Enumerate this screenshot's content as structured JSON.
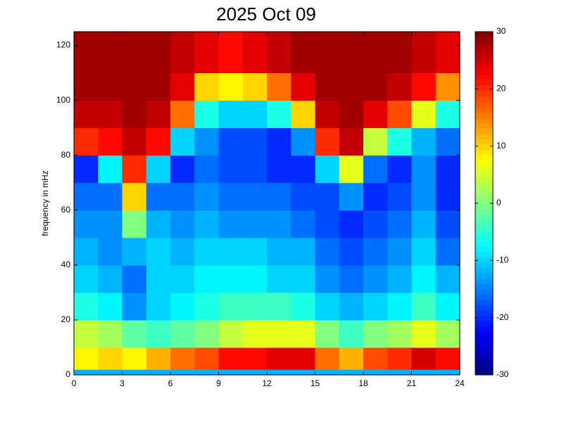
{
  "chart_data": {
    "type": "heatmap",
    "title": "2025 Oct 09",
    "y_label": "frequency in mHz",
    "x_edges": [
      0,
      1.5,
      3,
      4.5,
      6,
      7.5,
      9,
      10.5,
      12,
      13.5,
      15,
      16.5,
      18,
      19.5,
      21,
      22.5,
      24
    ],
    "y_edges": [
      0,
      2,
      10,
      20,
      30,
      40,
      50,
      60,
      70,
      80,
      90,
      100,
      110,
      125
    ],
    "values": [
      [
        -12,
        -12,
        -12,
        -12,
        -12,
        -12,
        -12,
        -12,
        -12,
        -12,
        -12,
        -12,
        -12,
        -12,
        -12,
        -12
      ],
      [
        8,
        10,
        8,
        12,
        16,
        18,
        22,
        22,
        24,
        24,
        16,
        12,
        18,
        20,
        25,
        22
      ],
      [
        4,
        2,
        -2,
        -4,
        -2,
        0,
        4,
        6,
        6,
        6,
        0,
        -4,
        0,
        2,
        6,
        2
      ],
      [
        -6,
        -8,
        -14,
        -10,
        -8,
        -6,
        -4,
        -4,
        -4,
        -6,
        -10,
        -12,
        -10,
        -8,
        -4,
        -8
      ],
      [
        -10,
        -12,
        -16,
        -10,
        -10,
        -8,
        -8,
        -8,
        -10,
        -10,
        -14,
        -16,
        -14,
        -12,
        -8,
        -12
      ],
      [
        -12,
        -14,
        -12,
        -10,
        -12,
        -10,
        -10,
        -10,
        -12,
        -12,
        -16,
        -18,
        -16,
        -14,
        -10,
        -16
      ],
      [
        -14,
        -14,
        0,
        -12,
        -14,
        -12,
        -14,
        -14,
        -14,
        -16,
        -18,
        -20,
        -18,
        -16,
        -12,
        -18
      ],
      [
        -16,
        -16,
        10,
        -16,
        -16,
        -14,
        -16,
        -16,
        -16,
        -18,
        -18,
        -14,
        -20,
        -18,
        -14,
        -20
      ],
      [
        -20,
        -8,
        20,
        -10,
        -20,
        -16,
        -18,
        -18,
        -20,
        -20,
        -10,
        6,
        -16,
        -20,
        -14,
        -20
      ],
      [
        20,
        22,
        26,
        22,
        -10,
        -14,
        -18,
        -18,
        -20,
        -14,
        20,
        26,
        4,
        -6,
        -12,
        -16
      ],
      [
        26,
        26,
        28,
        26,
        16,
        -6,
        -10,
        -10,
        -6,
        10,
        26,
        28,
        24,
        18,
        6,
        -6
      ],
      [
        28,
        28,
        28,
        28,
        24,
        10,
        8,
        10,
        16,
        24,
        28,
        28,
        28,
        26,
        22,
        14
      ],
      [
        28,
        28,
        28,
        28,
        26,
        24,
        22,
        24,
        26,
        28,
        28,
        28,
        28,
        28,
        26,
        24
      ]
    ],
    "xlim": [
      0,
      24
    ],
    "xticks": [
      0,
      3,
      6,
      9,
      12,
      15,
      18,
      21,
      24
    ],
    "ylim": [
      0,
      125
    ],
    "yticks": [
      0,
      20,
      40,
      60,
      80,
      100,
      120
    ],
    "clim": [
      -30,
      30
    ],
    "cticks": [
      -30,
      -20,
      -10,
      0,
      10,
      20,
      30
    ],
    "colormap": "jet"
  }
}
